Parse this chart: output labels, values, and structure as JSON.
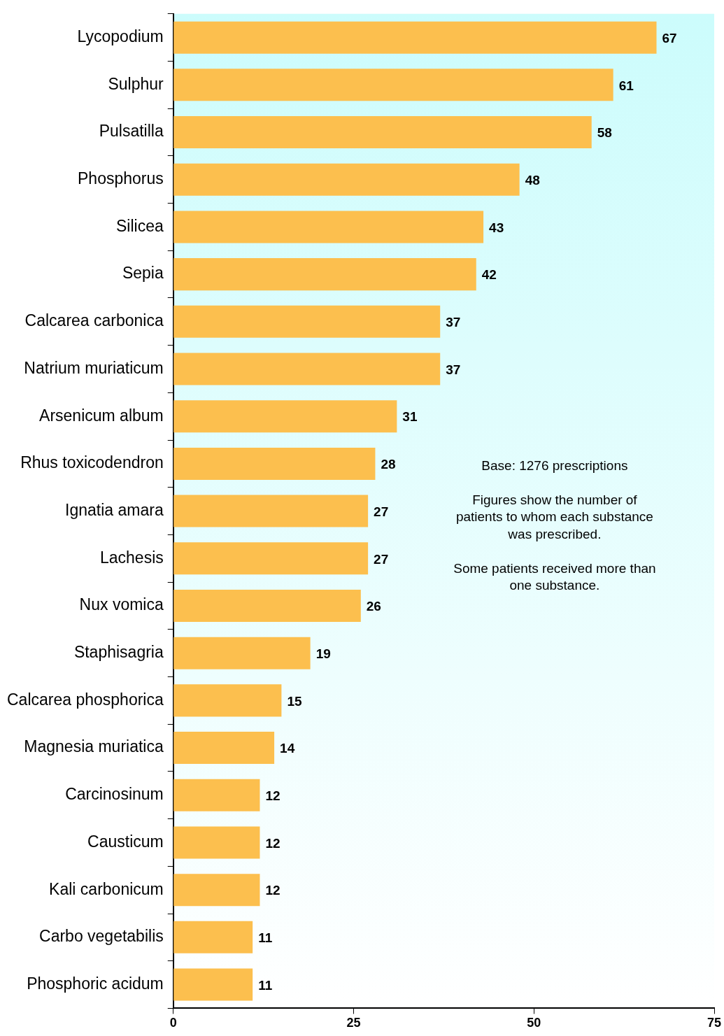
{
  "chart_data": {
    "type": "bar",
    "orientation": "horizontal",
    "categories": [
      "Lycopodium",
      "Sulphur",
      "Pulsatilla",
      "Phosphorus",
      "Silicea",
      "Sepia",
      "Calcarea carbonica",
      "Natrium muriaticum",
      "Arsenicum album",
      "Rhus toxicodendron",
      "Ignatia amara",
      "Lachesis",
      "Nux vomica",
      "Staphisagria",
      "Calcarea phosphorica",
      "Magnesia muriatica",
      "Carcinosinum",
      "Causticum",
      "Kali carbonicum",
      "Carbo vegetabilis",
      "Phosphoric acidum"
    ],
    "values": [
      67,
      61,
      58,
      48,
      43,
      42,
      37,
      37,
      31,
      28,
      27,
      27,
      26,
      19,
      15,
      14,
      12,
      12,
      12,
      11,
      11
    ],
    "color": "#fcbf4e",
    "xlim": [
      0,
      75
    ],
    "xticks": [
      0,
      25,
      50,
      75
    ],
    "data_labels": true,
    "grid": false,
    "legend": false,
    "annotations": [
      "Base: 1276 prescriptions",
      "Figures show the number of patients to whom each substance was prescribed.",
      "Some patients received more than one substance."
    ]
  }
}
